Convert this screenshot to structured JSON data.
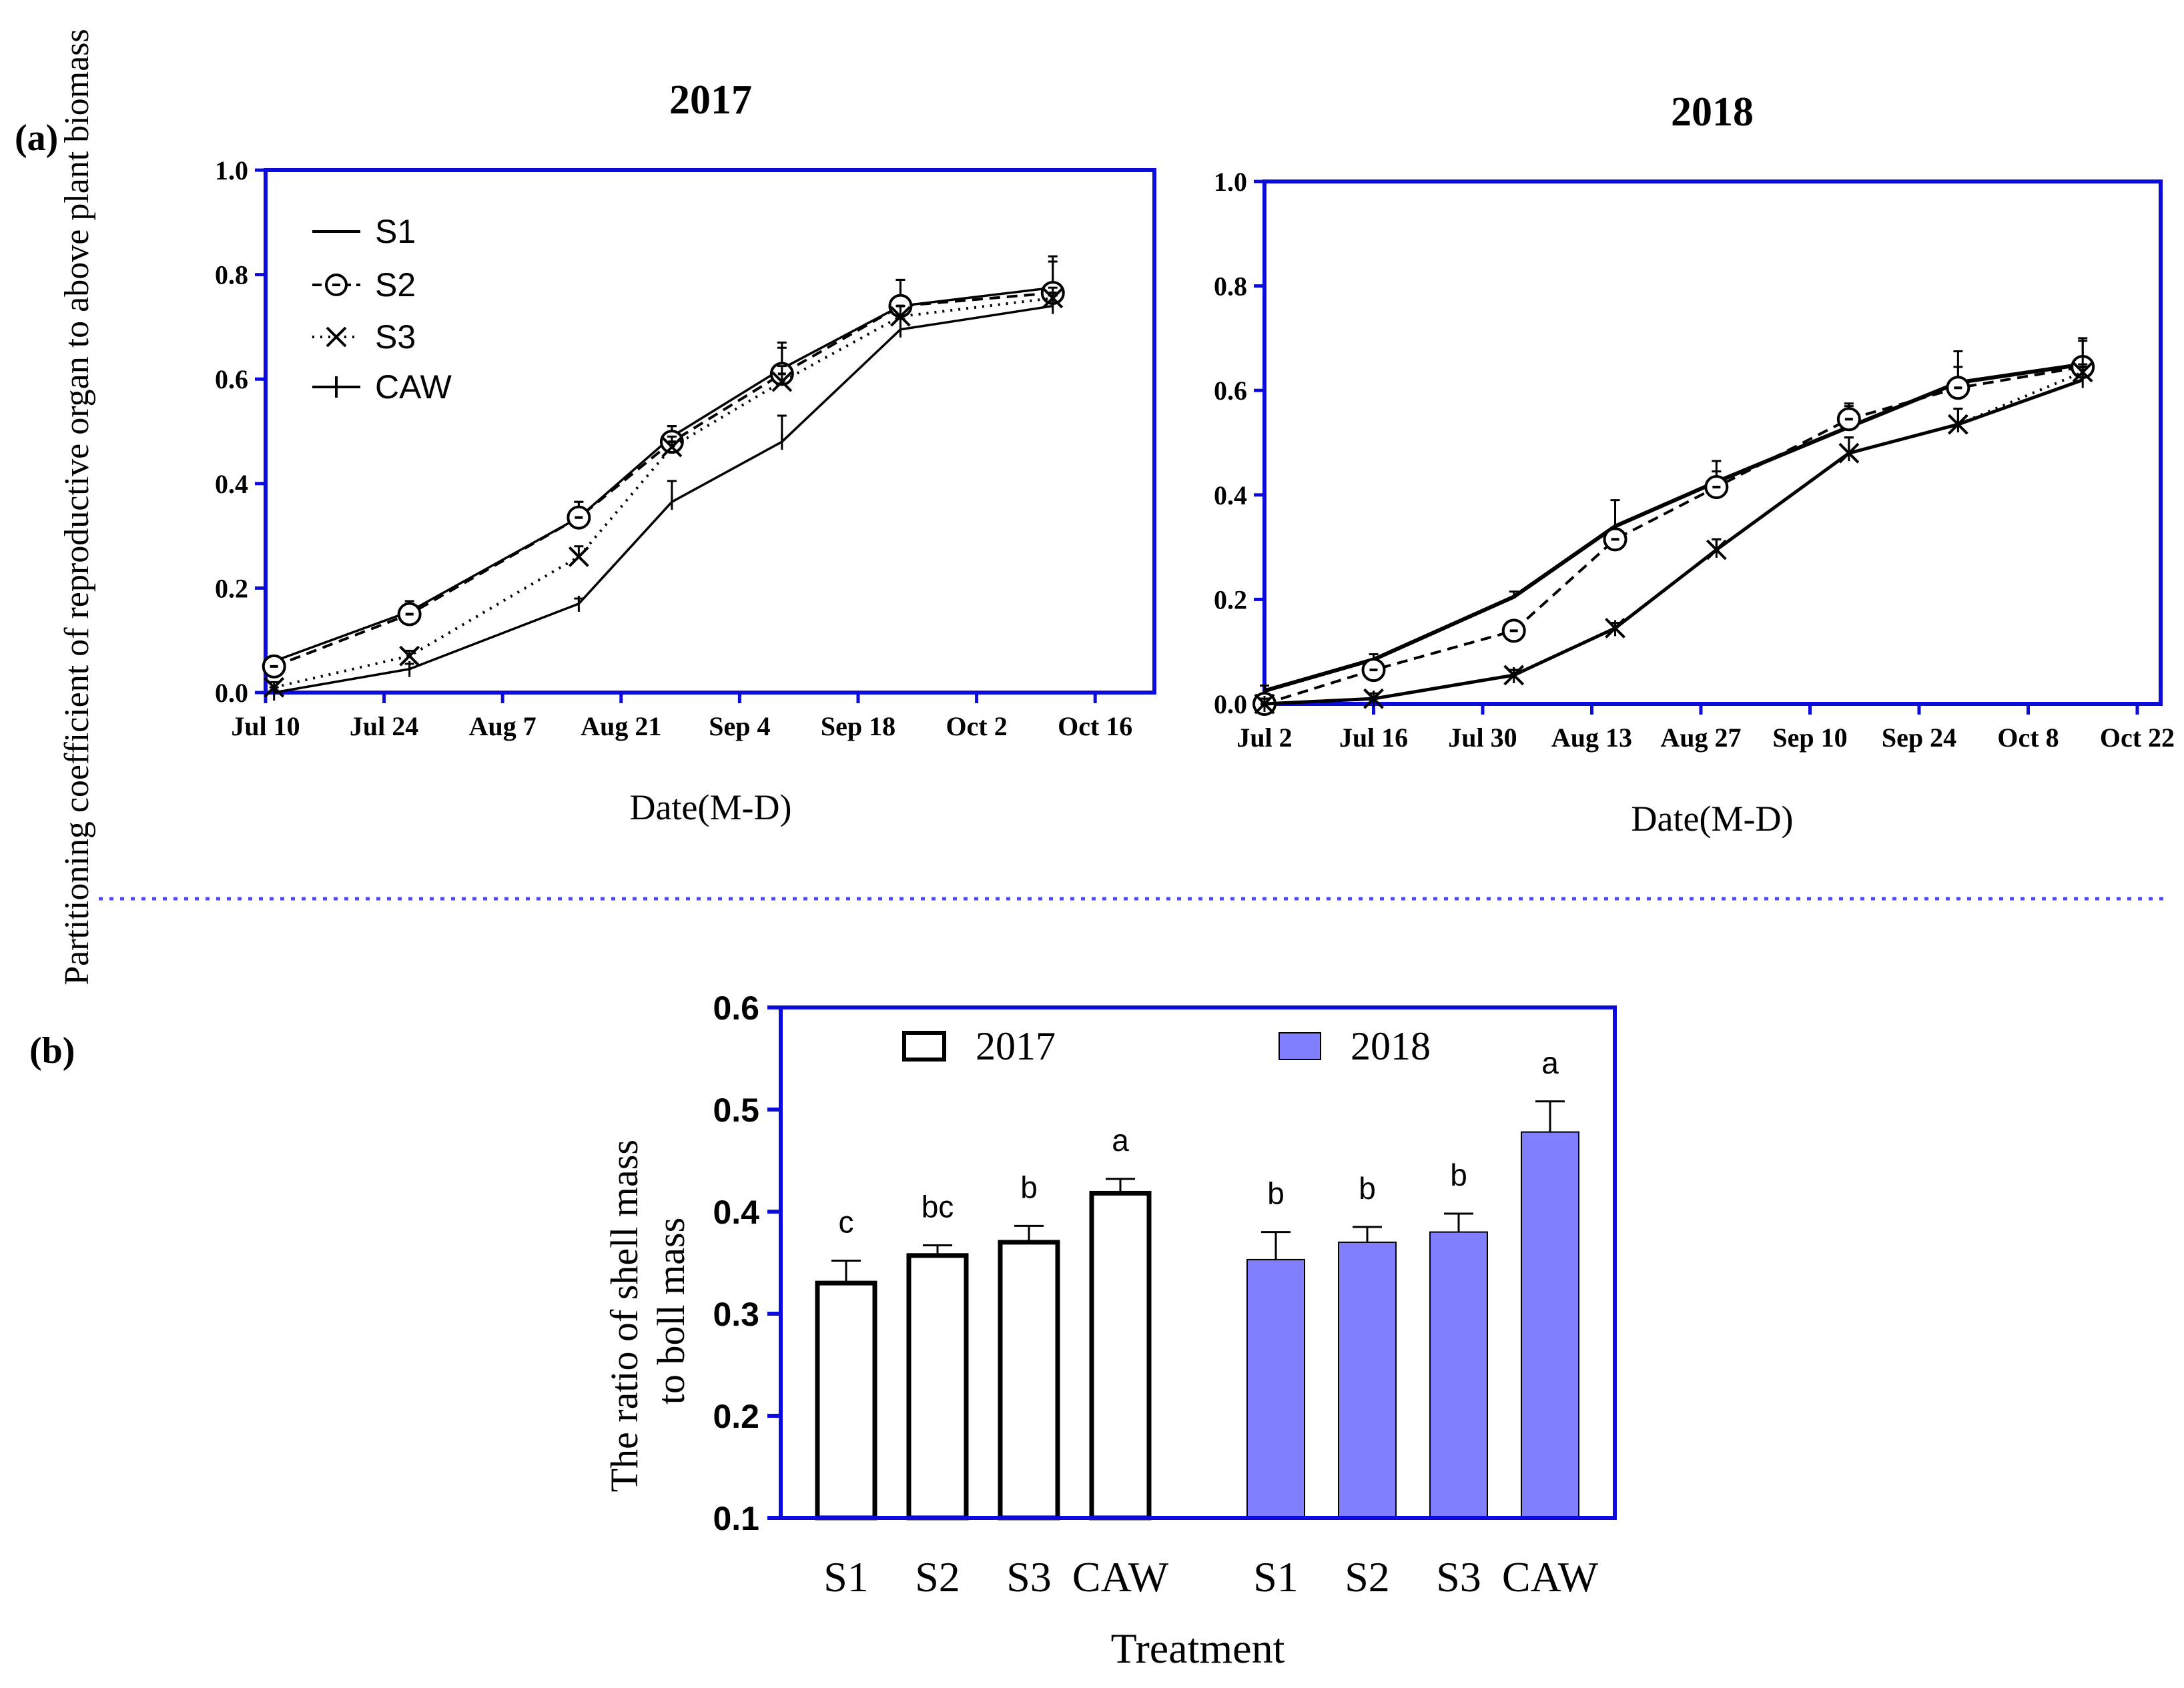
{
  "colors": {
    "axis": "#0b0bdc",
    "bar2018": "#8080ff",
    "divider": "#4a4aff",
    "line": "#000000"
  },
  "panel_a": {
    "label": "(a)"
  },
  "panel_b": {
    "label": "(b)"
  },
  "chart_data": [
    {
      "type": "line",
      "title": "2017",
      "xlabel": "Date(M-D)",
      "ylabel": "Partitioning coefficient of reproductive organ to above plant biomass",
      "ylim": [
        0,
        1.0
      ],
      "xlim": [
        0,
        105
      ],
      "yticks": [
        "0.0",
        "0.2",
        "0.4",
        "0.6",
        "0.8",
        "1.0"
      ],
      "xticks": [
        {
          "label": "Jul 10",
          "v": 0
        },
        {
          "label": "Jul 24",
          "v": 14
        },
        {
          "label": "Aug 7",
          "v": 28
        },
        {
          "label": "Aug 21",
          "v": 42
        },
        {
          "label": "Sep 4",
          "v": 56
        },
        {
          "label": "Sep 18",
          "v": 70
        },
        {
          "label": "Oct 2",
          "v": 84
        },
        {
          "label": "Oct 16",
          "v": 98
        }
      ],
      "legend": [
        "S1",
        "S2",
        "S3",
        "CAW"
      ],
      "series": [
        {
          "name": "S1",
          "x": [
            1,
            17,
            37,
            48,
            61,
            75,
            93
          ],
          "y": [
            0.06,
            0.155,
            0.335,
            0.49,
            0.62,
            0.74,
            0.775
          ],
          "err": [
            0.01,
            0.02,
            0.03,
            0.02,
            0.05,
            0.05,
            0.06
          ]
        },
        {
          "name": "S2",
          "x": [
            1,
            17,
            37,
            48,
            61,
            75,
            93
          ],
          "y": [
            0.05,
            0.15,
            0.335,
            0.48,
            0.61,
            0.74,
            0.765
          ],
          "err": [
            0.01,
            0.02,
            0.03,
            0.03,
            0.05,
            0.05,
            0.06
          ]
        },
        {
          "name": "S3",
          "x": [
            1,
            17,
            37,
            48,
            61,
            75,
            93
          ],
          "y": [
            0.01,
            0.07,
            0.26,
            0.47,
            0.595,
            0.72,
            0.755
          ],
          "err": [
            0.01,
            0.01,
            0.02,
            0.02,
            0.03,
            0.02,
            0.02
          ]
        },
        {
          "name": "CAW",
          "x": [
            1,
            17,
            37,
            48,
            61,
            75,
            93
          ],
          "y": [
            0.0,
            0.045,
            0.17,
            0.365,
            0.48,
            0.695,
            0.74
          ],
          "err": [
            0.01,
            0.01,
            0.01,
            0.04,
            0.05,
            0.02,
            0.02
          ]
        }
      ]
    },
    {
      "type": "line",
      "title": "2018",
      "xlabel": "Date(M-D)",
      "ylim": [
        0,
        1.0
      ],
      "xlim": [
        0,
        115
      ],
      "yticks": [
        "0.0",
        "0.2",
        "0.4",
        "0.6",
        "0.8",
        "1.0"
      ],
      "xticks": [
        {
          "label": "Jul 2",
          "v": 0
        },
        {
          "label": "Jul 16",
          "v": 14
        },
        {
          "label": "Jul 30",
          "v": 28
        },
        {
          "label": "Aug 13",
          "v": 42
        },
        {
          "label": "Aug 27",
          "v": 56
        },
        {
          "label": "Sep 10",
          "v": 70
        },
        {
          "label": "Sep 24",
          "v": 84
        },
        {
          "label": "Oct 8",
          "v": 98
        },
        {
          "label": "Oct 22",
          "v": 112
        }
      ],
      "series": [
        {
          "name": "S1",
          "x": [
            0,
            14,
            32,
            45,
            58,
            75,
            89,
            105
          ],
          "y": [
            0.025,
            0.085,
            0.205,
            0.34,
            0.425,
            0.53,
            0.615,
            0.65
          ],
          "err": [
            0.01,
            0.01,
            0.01,
            0.05,
            0.04,
            0.04,
            0.06,
            0.05
          ]
        },
        {
          "name": "S2",
          "x": [
            0,
            14,
            32,
            45,
            58,
            75,
            89,
            105
          ],
          "y": [
            0.0,
            0.065,
            0.14,
            0.315,
            0.415,
            0.545,
            0.605,
            0.645
          ],
          "err": [
            0.01,
            0.01,
            0.01,
            0.02,
            0.03,
            0.03,
            0.04,
            0.05
          ]
        },
        {
          "name": "S3",
          "x": [
            0,
            14,
            32,
            45,
            58,
            75,
            89,
            105
          ],
          "y": [
            0.0,
            0.01,
            0.055,
            0.145,
            0.295,
            0.48,
            0.535,
            0.635
          ],
          "err": [
            0.01,
            0.01,
            0.01,
            0.01,
            0.02,
            0.03,
            0.03,
            0.03
          ]
        },
        {
          "name": "CAW",
          "x": [
            0,
            14,
            32,
            45,
            58,
            75,
            89,
            105
          ],
          "y": [
            0.0,
            0.01,
            0.055,
            0.145,
            0.295,
            0.48,
            0.535,
            0.62
          ],
          "err": [
            0.01,
            0.01,
            0.01,
            0.01,
            0.02,
            0.03,
            0.03,
            0.03
          ]
        }
      ]
    },
    {
      "type": "bar",
      "xlabel": "Treatment",
      "ylabel": "The ratio of  shell mass to boll mass",
      "ylim": [
        0.1,
        0.6
      ],
      "yticks": [
        "0.1",
        "0.2",
        "0.3",
        "0.4",
        "0.5",
        "0.6"
      ],
      "categories": [
        "S1",
        "S2",
        "S3",
        "CAW"
      ],
      "series": [
        {
          "name": "2017",
          "values": [
            0.33,
            0.357,
            0.37,
            0.418
          ],
          "err": [
            0.022,
            0.01,
            0.016,
            0.014
          ],
          "letters": [
            "c",
            "bc",
            "b",
            "a"
          ]
        },
        {
          "name": "2018",
          "values": [
            0.353,
            0.37,
            0.38,
            0.478
          ],
          "err": [
            0.027,
            0.015,
            0.018,
            0.03
          ],
          "letters": [
            "b",
            "b",
            "b",
            "a"
          ]
        }
      ]
    }
  ]
}
